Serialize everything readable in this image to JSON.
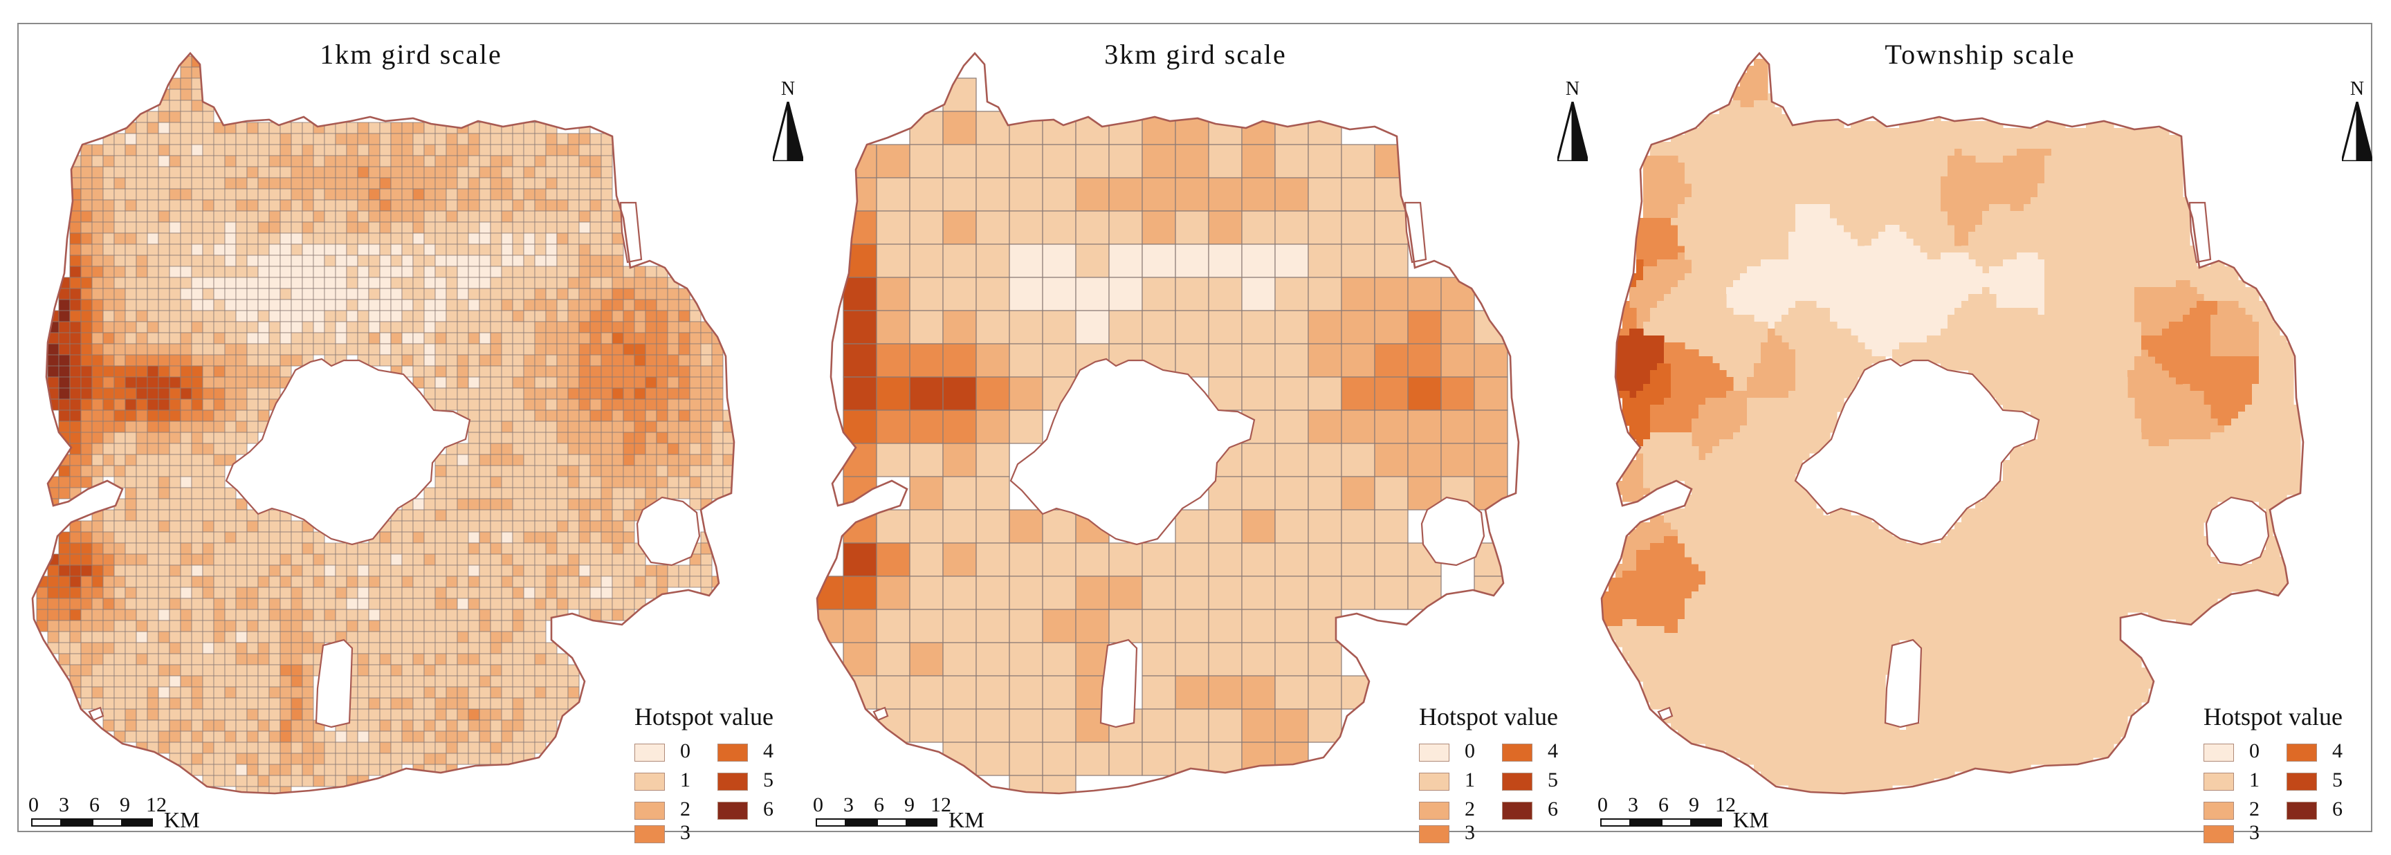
{
  "panels": [
    {
      "id": "p1",
      "title": "1km gird scale",
      "scale": "1km",
      "north": "N",
      "legend_title": "Hotspot value",
      "scalebar": {
        "ticks": [
          "0",
          "3",
          "6",
          "9",
          "12"
        ],
        "unit": "KM"
      }
    },
    {
      "id": "p2",
      "title": "3km gird scale",
      "scale": "3km",
      "north": "N",
      "legend_title": "Hotspot value",
      "scalebar": {
        "ticks": [
          "0",
          "3",
          "6",
          "9",
          "12"
        ],
        "unit": "KM"
      }
    },
    {
      "id": "p3",
      "title": "Township scale",
      "scale": "township",
      "north": "N",
      "legend_title": "Hotspot value",
      "scalebar": {
        "ticks": [
          "0",
          "3",
          "6",
          "9",
          "12"
        ],
        "unit": "KM"
      }
    }
  ],
  "legend": {
    "classes": [
      {
        "value": "0",
        "label": "0",
        "color": "#fcebdc"
      },
      {
        "value": "1",
        "label": "1",
        "color": "#f5cea8"
      },
      {
        "value": "2",
        "label": "2",
        "color": "#f1b07c"
      },
      {
        "value": "3",
        "label": "3",
        "color": "#eb8c4c"
      },
      {
        "value": "4",
        "label": "4",
        "color": "#de6a26"
      },
      {
        "value": "5",
        "label": "5",
        "color": "#c24818"
      },
      {
        "value": "6",
        "label": "6",
        "color": "#862a1a"
      }
    ]
  },
  "colors": {
    "boundary": "#a85a52",
    "grid_line": "#8a7a75",
    "hole": "#ffffff",
    "frame": "#8a8a8a"
  },
  "icons": {
    "north_arrow": "north-arrow-icon"
  }
}
